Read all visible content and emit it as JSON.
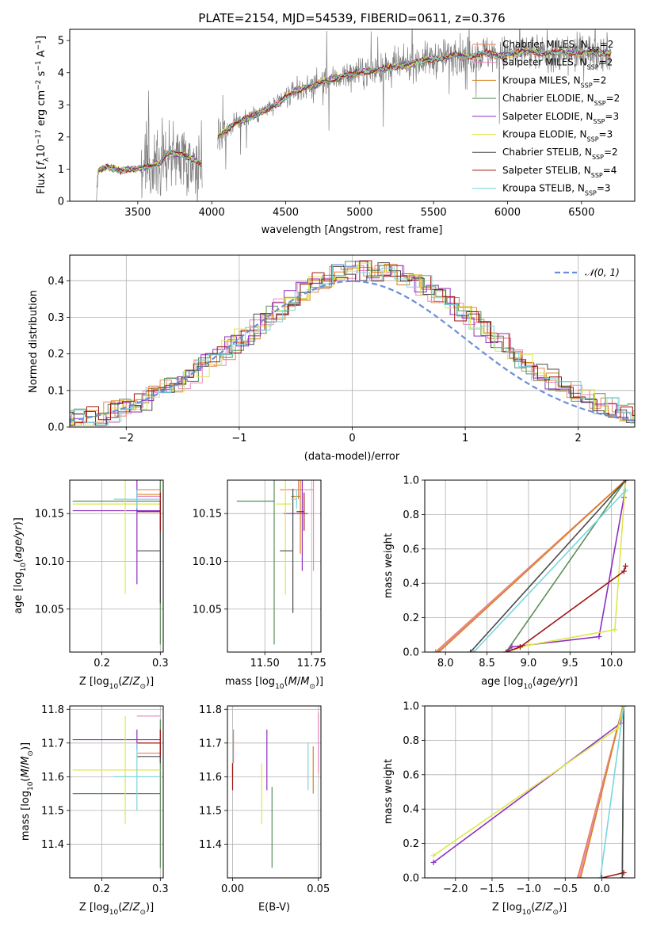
{
  "colors": {
    "spectrum": "#808080",
    "gaussian": "#6a8fd6",
    "grid": "#b0b0b0",
    "series": [
      "#e8825c",
      "#e88ac0",
      "#d9821e",
      "#5a8f5a",
      "#8e2fbf",
      "#dce84a",
      "#4a4a4a",
      "#a01515",
      "#7ad6dc"
    ]
  },
  "series_names": [
    "Chabrier MILES, N_SSP=2",
    "Salpeter MILES, N_SSP=2",
    "Kroupa MILES, N_SSP=2",
    "Chabrier ELODIE, N_SSP=2",
    "Salpeter ELODIE, N_SSP=3",
    "Kroupa ELODIE, N_SSP=3",
    "Chabrier STELIB, N_SSP=2",
    "Salpeter STELIB, N_SSP=4",
    "Kroupa STELIB, N_SSP=3"
  ],
  "chart_data": [
    {
      "id": "spectrum",
      "type": "line",
      "title": "PLATE=2154, MJD=54539, FIBERID=0611, z=0.376",
      "xlabel": "wavelength [Angstrom, rest frame]",
      "ylabel": "Flux [f_λ 10^-17 erg cm^-2 s^-1 A^-1]",
      "xlim": [
        3040,
        6860
      ],
      "ylim": [
        0,
        5.35
      ],
      "xticks": [
        3500,
        4000,
        4500,
        5000,
        5500,
        6000,
        6500
      ],
      "yticks": [
        0,
        1,
        2,
        3,
        4,
        5
      ],
      "legend": "upper-right",
      "continuum_x": [
        3220,
        3230,
        3300,
        3380,
        3450,
        3550,
        3650,
        3700,
        3800,
        3900,
        3950,
        4050,
        4150,
        4250,
        4350,
        4450,
        4550,
        4650,
        4750,
        4850,
        4950,
        5050,
        5150,
        5250,
        5350,
        5450,
        5550,
        5650,
        5750,
        5850,
        5950,
        6050,
        6150,
        6250,
        6350,
        6450,
        6550,
        6700
      ],
      "continuum_y": [
        0.0,
        0.95,
        1.05,
        0.98,
        1.0,
        1.05,
        1.2,
        1.5,
        1.45,
        1.25,
        1.1,
        2.05,
        2.4,
        2.6,
        2.8,
        3.05,
        3.4,
        3.55,
        3.7,
        3.85,
        3.95,
        4.05,
        4.1,
        4.2,
        4.3,
        4.4,
        4.45,
        4.55,
        4.5,
        4.6,
        4.55,
        4.6,
        4.65,
        4.6,
        4.65,
        4.6,
        4.65,
        4.6
      ],
      "gap_start": 3935,
      "gap_end": 4040
    },
    {
      "id": "residuals",
      "type": "line",
      "xlabel": "(data-model)/error",
      "ylabel": "Normed distribution",
      "xlim": [
        -2.5,
        2.5
      ],
      "ylim": [
        0,
        0.47
      ],
      "xticks": [
        -2,
        -1,
        0,
        1,
        2
      ],
      "yticks": [
        0.0,
        0.1,
        0.2,
        0.3,
        0.4
      ],
      "reference": {
        "name": "N(0,1)",
        "mean": 0,
        "sigma": 1
      }
    },
    {
      "id": "age-vs-Z",
      "type": "scatter",
      "xlabel": "Z [log10(Z/Z☉)]",
      "ylabel": "age [log10(age/yr)]",
      "xlim": [
        0.145,
        0.305
      ],
      "ylim": [
        10.005,
        10.185
      ],
      "xticks": [
        0.2,
        0.3
      ],
      "yticks": [
        10.05,
        10.1,
        10.15
      ],
      "points": [
        {
          "x": 0.3,
          "y": 10.175,
          "xerr": [
            0.04,
            0.0
          ],
          "yerr": 0.01
        },
        {
          "x": 0.3,
          "y": 10.168,
          "xerr": [
            0.04,
            0.0
          ],
          "yerr": 0.01
        },
        {
          "x": 0.3,
          "y": 10.17,
          "xerr": [
            0.04,
            0.0
          ],
          "yerr": 0.01
        },
        {
          "x": 0.3,
          "y": 10.163,
          "xerr": [
            0.15,
            0.0
          ],
          "yerr": 0.15
        },
        {
          "x": 0.26,
          "y": 10.153,
          "xerr": [
            0.11,
            0.04
          ],
          "yerr": 0.077
        },
        {
          "x": 0.24,
          "y": 10.16,
          "xerr": [
            0.09,
            0.06
          ],
          "yerr": 0.094
        },
        {
          "x": 0.3,
          "y": 10.111,
          "xerr": [
            0.04,
            0.0
          ],
          "yerr": 0.055
        },
        {
          "x": 0.3,
          "y": 10.152,
          "xerr": [
            0.04,
            0.0
          ],
          "yerr": 0.02
        },
        {
          "x": 0.26,
          "y": 10.165,
          "xerr": [
            0.04,
            0.04
          ],
          "yerr": 0.01
        }
      ]
    },
    {
      "id": "age-vs-mass",
      "type": "scatter",
      "xlabel": "mass [log10(M/M☉)]",
      "ylabel": "",
      "xlim": [
        11.3,
        11.8
      ],
      "ylim": [
        10.005,
        10.185
      ],
      "xticks": [
        11.5,
        11.75
      ],
      "yticks": [
        10.05,
        10.1,
        10.15
      ],
      "points": [
        {
          "x": 11.68,
          "y": 10.175,
          "xerr": [
            0.1,
            0.0
          ],
          "yerr": 0.01
        },
        {
          "x": 11.76,
          "y": 10.175,
          "xerr": [
            0.08,
            0.0
          ],
          "yerr": 0.085
        },
        {
          "x": 11.69,
          "y": 10.168,
          "xerr": [
            0.05,
            0.0
          ],
          "yerr": 0.06
        },
        {
          "x": 11.55,
          "y": 10.163,
          "xerr": [
            0.2,
            0.0
          ],
          "yerr": 0.15
        },
        {
          "x": 11.7,
          "y": 10.15,
          "xerr": [
            0.1,
            0.03
          ],
          "yerr": 0.06
        },
        {
          "x": 11.61,
          "y": 10.16,
          "xerr": [
            0.05,
            0.03
          ],
          "yerr": 0.095
        },
        {
          "x": 11.65,
          "y": 10.111,
          "xerr": [
            0.07,
            0.0
          ],
          "yerr": 0.065
        },
        {
          "x": 11.71,
          "y": 10.152,
          "xerr": [
            0.04,
            0.0
          ],
          "yerr": 0.02
        },
        {
          "x": 11.67,
          "y": 10.165,
          "xerr": [
            0.03,
            0.0
          ],
          "yerr": 0.01
        }
      ]
    },
    {
      "id": "massweight-vs-age",
      "type": "line",
      "xlabel": "age [log10(age/yr)]",
      "ylabel": "mass weight",
      "xlim": [
        7.75,
        10.28
      ],
      "ylim": [
        0,
        1.0
      ],
      "xticks": [
        8.0,
        8.5,
        9.0,
        9.5,
        10.0
      ],
      "yticks": [
        0.0,
        0.2,
        0.4,
        0.6,
        0.8,
        1.0
      ],
      "series": [
        {
          "x": [
            7.88,
            10.17
          ],
          "y": [
            0.0,
            1.0
          ]
        },
        {
          "x": [
            7.9,
            10.17
          ],
          "y": [
            0.0,
            1.0
          ]
        },
        {
          "x": [
            7.92,
            10.17
          ],
          "y": [
            0.0,
            1.0
          ]
        },
        {
          "x": [
            8.73,
            10.17
          ],
          "y": [
            0.0,
            1.0
          ]
        },
        {
          "x": [
            8.73,
            8.8,
            9.85,
            10.15,
            10.17
          ],
          "y": [
            0.0,
            0.03,
            0.09,
            0.9,
            1.0
          ]
        },
        {
          "x": [
            8.73,
            9.0,
            10.04,
            10.17
          ],
          "y": [
            0.0,
            0.04,
            0.13,
            1.0
          ]
        },
        {
          "x": [
            8.3,
            10.17
          ],
          "y": [
            0.0,
            1.0
          ]
        },
        {
          "x": [
            8.73,
            8.9,
            10.15,
            10.17
          ],
          "y": [
            0.0,
            0.03,
            0.47,
            0.5
          ]
        },
        {
          "x": [
            8.34,
            10.17
          ],
          "y": [
            0.0,
            0.94
          ]
        }
      ]
    },
    {
      "id": "mass-vs-Z",
      "type": "scatter",
      "xlabel": "Z [log10(Z/Z☉)]",
      "ylabel": "mass [log10(M/M☉)]",
      "xlim": [
        0.145,
        0.305
      ],
      "ylim": [
        11.3,
        11.81
      ],
      "xticks": [
        0.2,
        0.3
      ],
      "yticks": [
        11.4,
        11.5,
        11.6,
        11.7,
        11.8
      ],
      "points": [
        {
          "x": 0.3,
          "y": 11.67,
          "xerr": [
            0.04,
            0.0
          ],
          "yerr": 0.03
        },
        {
          "x": 0.3,
          "y": 11.78,
          "xerr": [
            0.04,
            0.0
          ],
          "yerr": 0.0
        },
        {
          "x": 0.3,
          "y": 11.7,
          "xerr": [
            0.04,
            0.0
          ],
          "yerr": 0.04
        },
        {
          "x": 0.3,
          "y": 11.55,
          "xerr": [
            0.15,
            0.0
          ],
          "yerr": 0.22
        },
        {
          "x": 0.26,
          "y": 11.71,
          "xerr": [
            0.11,
            0.04
          ],
          "yerr": 0.03
        },
        {
          "x": 0.24,
          "y": 11.62,
          "xerr": [
            0.09,
            0.06
          ],
          "yerr": 0.16
        },
        {
          "x": 0.3,
          "y": 11.66,
          "xerr": [
            0.04,
            0.0
          ],
          "yerr": 0.02
        },
        {
          "x": 0.3,
          "y": 11.7,
          "xerr": [
            0.04,
            0.0
          ],
          "yerr": 0.04
        },
        {
          "x": 0.26,
          "y": 11.6,
          "xerr": [
            0.04,
            0.04
          ],
          "yerr": 0.1
        }
      ]
    },
    {
      "id": "mass-vs-ebv",
      "type": "scatter",
      "xlabel": "E(B-V)",
      "ylabel": "",
      "xlim": [
        -0.003,
        0.0515
      ],
      "ylim": [
        11.3,
        11.81
      ],
      "xticks": [
        0.0,
        0.05
      ],
      "yticks": [
        11.4,
        11.5,
        11.6,
        11.7,
        11.8
      ],
      "points": [
        {
          "x": 0.0005,
          "y": 11.69,
          "yerr": 0.05
        },
        {
          "x": 0.05,
          "y": 11.7,
          "yerr": 0.09
        },
        {
          "x": 0.047,
          "y": 11.62,
          "yerr": 0.07
        },
        {
          "x": 0.023,
          "y": 11.45,
          "yerr": 0.12
        },
        {
          "x": 0.02,
          "y": 11.65,
          "yerr": 0.09
        },
        {
          "x": 0.017,
          "y": 11.55,
          "yerr": 0.09
        },
        {
          "x": 0.0,
          "y": 11.62,
          "yerr": 0.02
        },
        {
          "x": 0.0,
          "y": 11.6,
          "yerr": 0.04
        },
        {
          "x": 0.044,
          "y": 11.63,
          "yerr": 0.07
        }
      ]
    },
    {
      "id": "massweight-vs-Z",
      "type": "line",
      "xlabel": "Z [log10(Z/Z☉)]",
      "ylabel": "mass weight",
      "xlim": [
        -2.42,
        0.45
      ],
      "ylim": [
        0,
        1.0
      ],
      "xticks": [
        -2.0,
        -1.5,
        -1.0,
        -0.5,
        0.0
      ],
      "yticks": [
        0.0,
        0.2,
        0.4,
        0.6,
        0.8,
        1.0
      ],
      "series": [
        {
          "x": [
            -0.33,
            0.29
          ],
          "y": [
            0.0,
            1.0
          ]
        },
        {
          "x": [
            -0.31,
            0.29
          ],
          "y": [
            0.0,
            1.0
          ]
        },
        {
          "x": [
            -0.29,
            0.29
          ],
          "y": [
            0.0,
            1.0
          ]
        },
        {
          "x": [
            0.28,
            0.3
          ],
          "y": [
            0.0,
            1.0
          ]
        },
        {
          "x": [
            -2.3,
            0.26,
            0.3
          ],
          "y": [
            0.09,
            0.9,
            1.0
          ]
        },
        {
          "x": [
            -2.3,
            0.22,
            0.3
          ],
          "y": [
            0.13,
            0.87,
            1.0
          ]
        },
        {
          "x": [
            0.28,
            0.3
          ],
          "y": [
            0.0,
            1.0
          ]
        },
        {
          "x": [
            0.0,
            0.3
          ],
          "y": [
            0.0,
            0.03
          ]
        },
        {
          "x": [
            -0.02,
            0.3
          ],
          "y": [
            0.0,
            1.0
          ]
        }
      ]
    }
  ]
}
